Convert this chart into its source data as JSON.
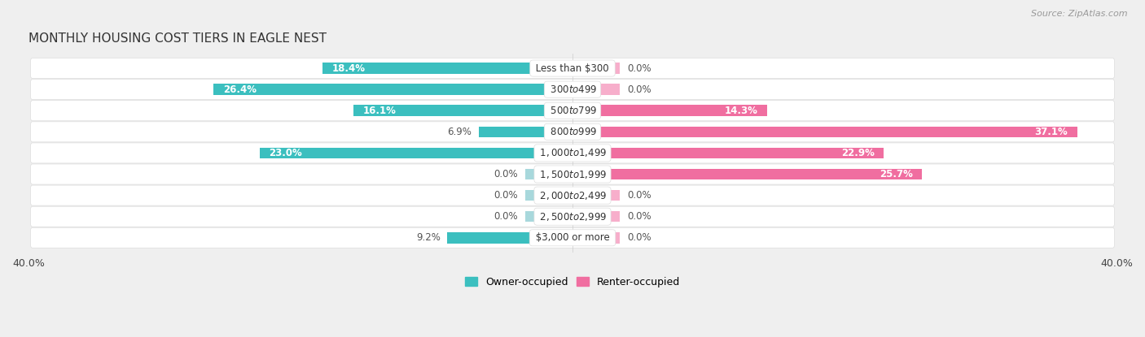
{
  "title": "MONTHLY HOUSING COST TIERS IN EAGLE NEST",
  "source": "Source: ZipAtlas.com",
  "categories": [
    "Less than $300",
    "$300 to $499",
    "$500 to $799",
    "$800 to $999",
    "$1,000 to $1,499",
    "$1,500 to $1,999",
    "$2,000 to $2,499",
    "$2,500 to $2,999",
    "$3,000 or more"
  ],
  "owner_values": [
    18.4,
    26.4,
    16.1,
    6.9,
    23.0,
    0.0,
    0.0,
    0.0,
    9.2
  ],
  "renter_values": [
    0.0,
    0.0,
    14.3,
    37.1,
    22.9,
    25.7,
    0.0,
    0.0,
    0.0
  ],
  "owner_color": "#3BBFBF",
  "renter_color": "#F06EA0",
  "owner_color_dim": "#A8D8DC",
  "renter_color_dim": "#F7AECB",
  "bg_color": "#EFEFEF",
  "row_bg_light": "#F7F7F7",
  "row_bg_dark": "#EBEBEB",
  "axis_limit": 40.0,
  "zero_stub": 3.5,
  "title_fontsize": 11,
  "source_fontsize": 8,
  "value_fontsize": 8.5,
  "category_fontsize": 8.5,
  "legend_fontsize": 9
}
